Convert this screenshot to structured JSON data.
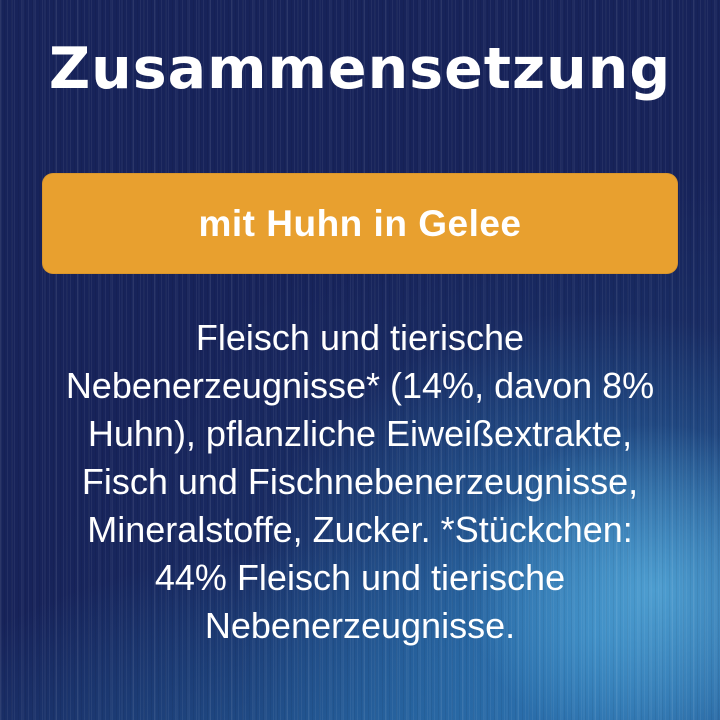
{
  "card": {
    "title": "Zusammensetzung",
    "banner": {
      "label": "mit Huhn in Gelee",
      "background_color": "#E8A02F",
      "text_color": "#FFFFFF"
    },
    "composition": {
      "text": "Fleisch und tierische\nNebenerzeugnisse* (14%, davon 8%\nHuhn), pflanzliche Eiweißextrakte,\nFisch und Fischnebenerzeugnisse,\nMineralstoffe, Zucker. *Stückchen:\n44% Fleisch und tierische\nNebenerzeugnisse."
    },
    "colors": {
      "background_dark_navy": "#17235A",
      "background_bright_blue": "#2E80BC",
      "banner_orange": "#E8A02F",
      "title_text": "#FFFFFF",
      "body_text": "#FFFFFF"
    }
  }
}
